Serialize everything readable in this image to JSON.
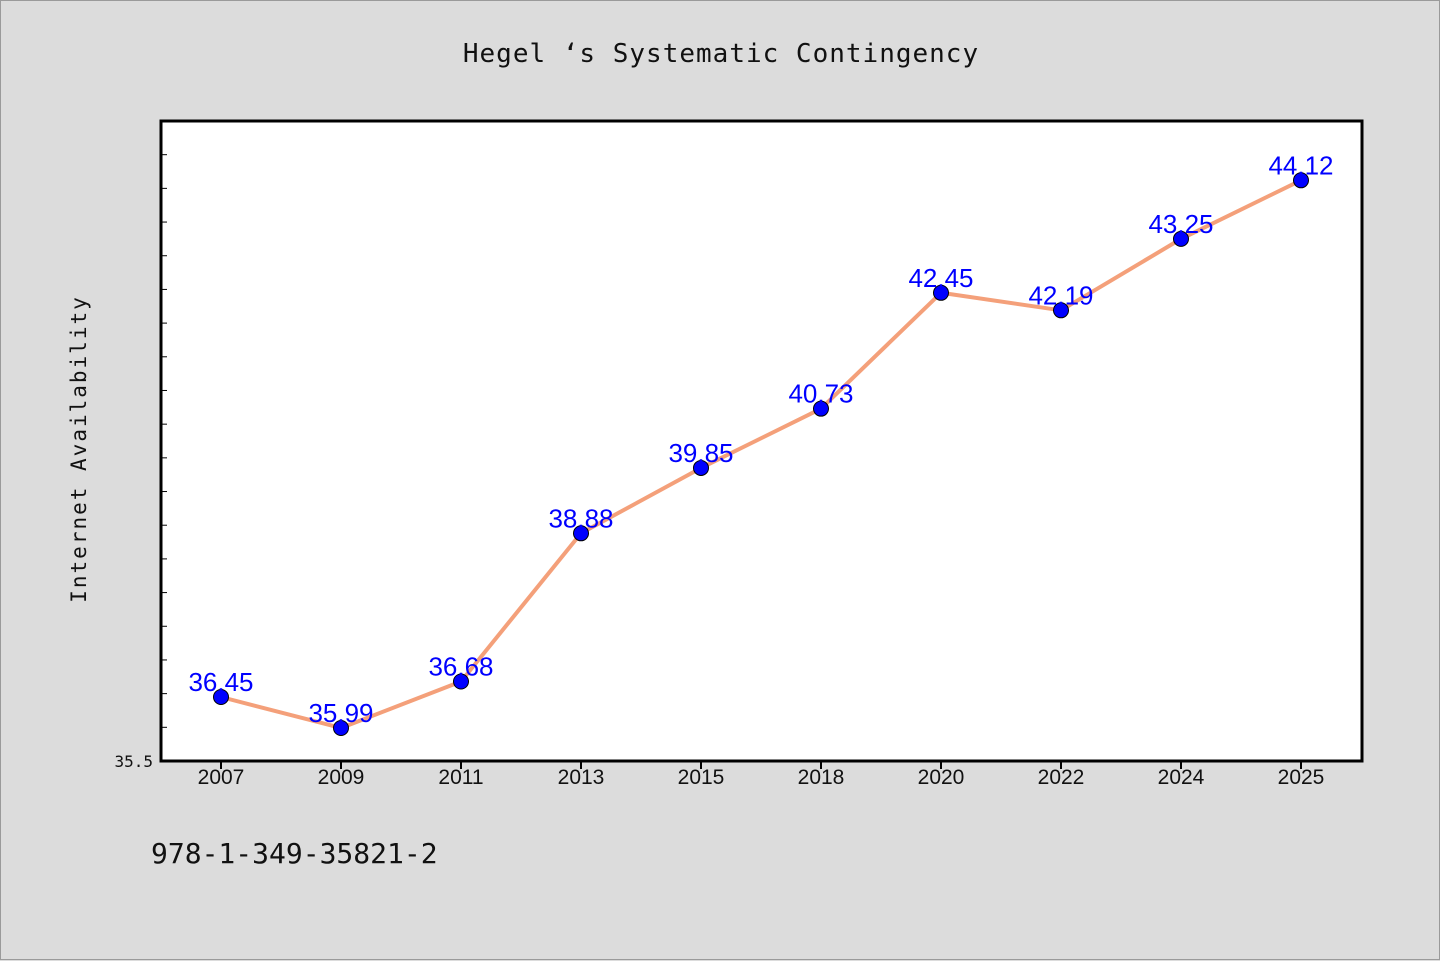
{
  "chart_data": {
    "type": "line",
    "title": "Hegel ‘s Systematic Contingency",
    "xlabel": "",
    "ylabel": "Internet Availability",
    "categories": [
      "2007",
      "2009",
      "2011",
      "2013",
      "2015",
      "2018",
      "2020",
      "2022",
      "2024",
      "2025"
    ],
    "series": [
      {
        "values": [
          36.45,
          35.99,
          36.68,
          38.88,
          39.85,
          40.73,
          42.45,
          42.19,
          43.25,
          44.12
        ],
        "labels": [
          "36.45",
          "35.99",
          "36.68",
          "38.88",
          "39.85",
          "40.73",
          "42.45",
          "42.19",
          "43.25",
          "44.12"
        ],
        "line_color": "#f4a07a",
        "marker_color": "#0000ff"
      }
    ],
    "ylim": [
      35.5,
      45.0
    ],
    "ytick_labels": [
      "35.5"
    ],
    "grid": false,
    "legend": "none"
  },
  "footer": {
    "text": "978-1-349-35821-2"
  },
  "colors": {
    "background": "#dcdcdc",
    "plot_background": "#ffffff",
    "line": "#f4a07a",
    "marker": "#0000ff",
    "data_label": "#0000ff"
  }
}
